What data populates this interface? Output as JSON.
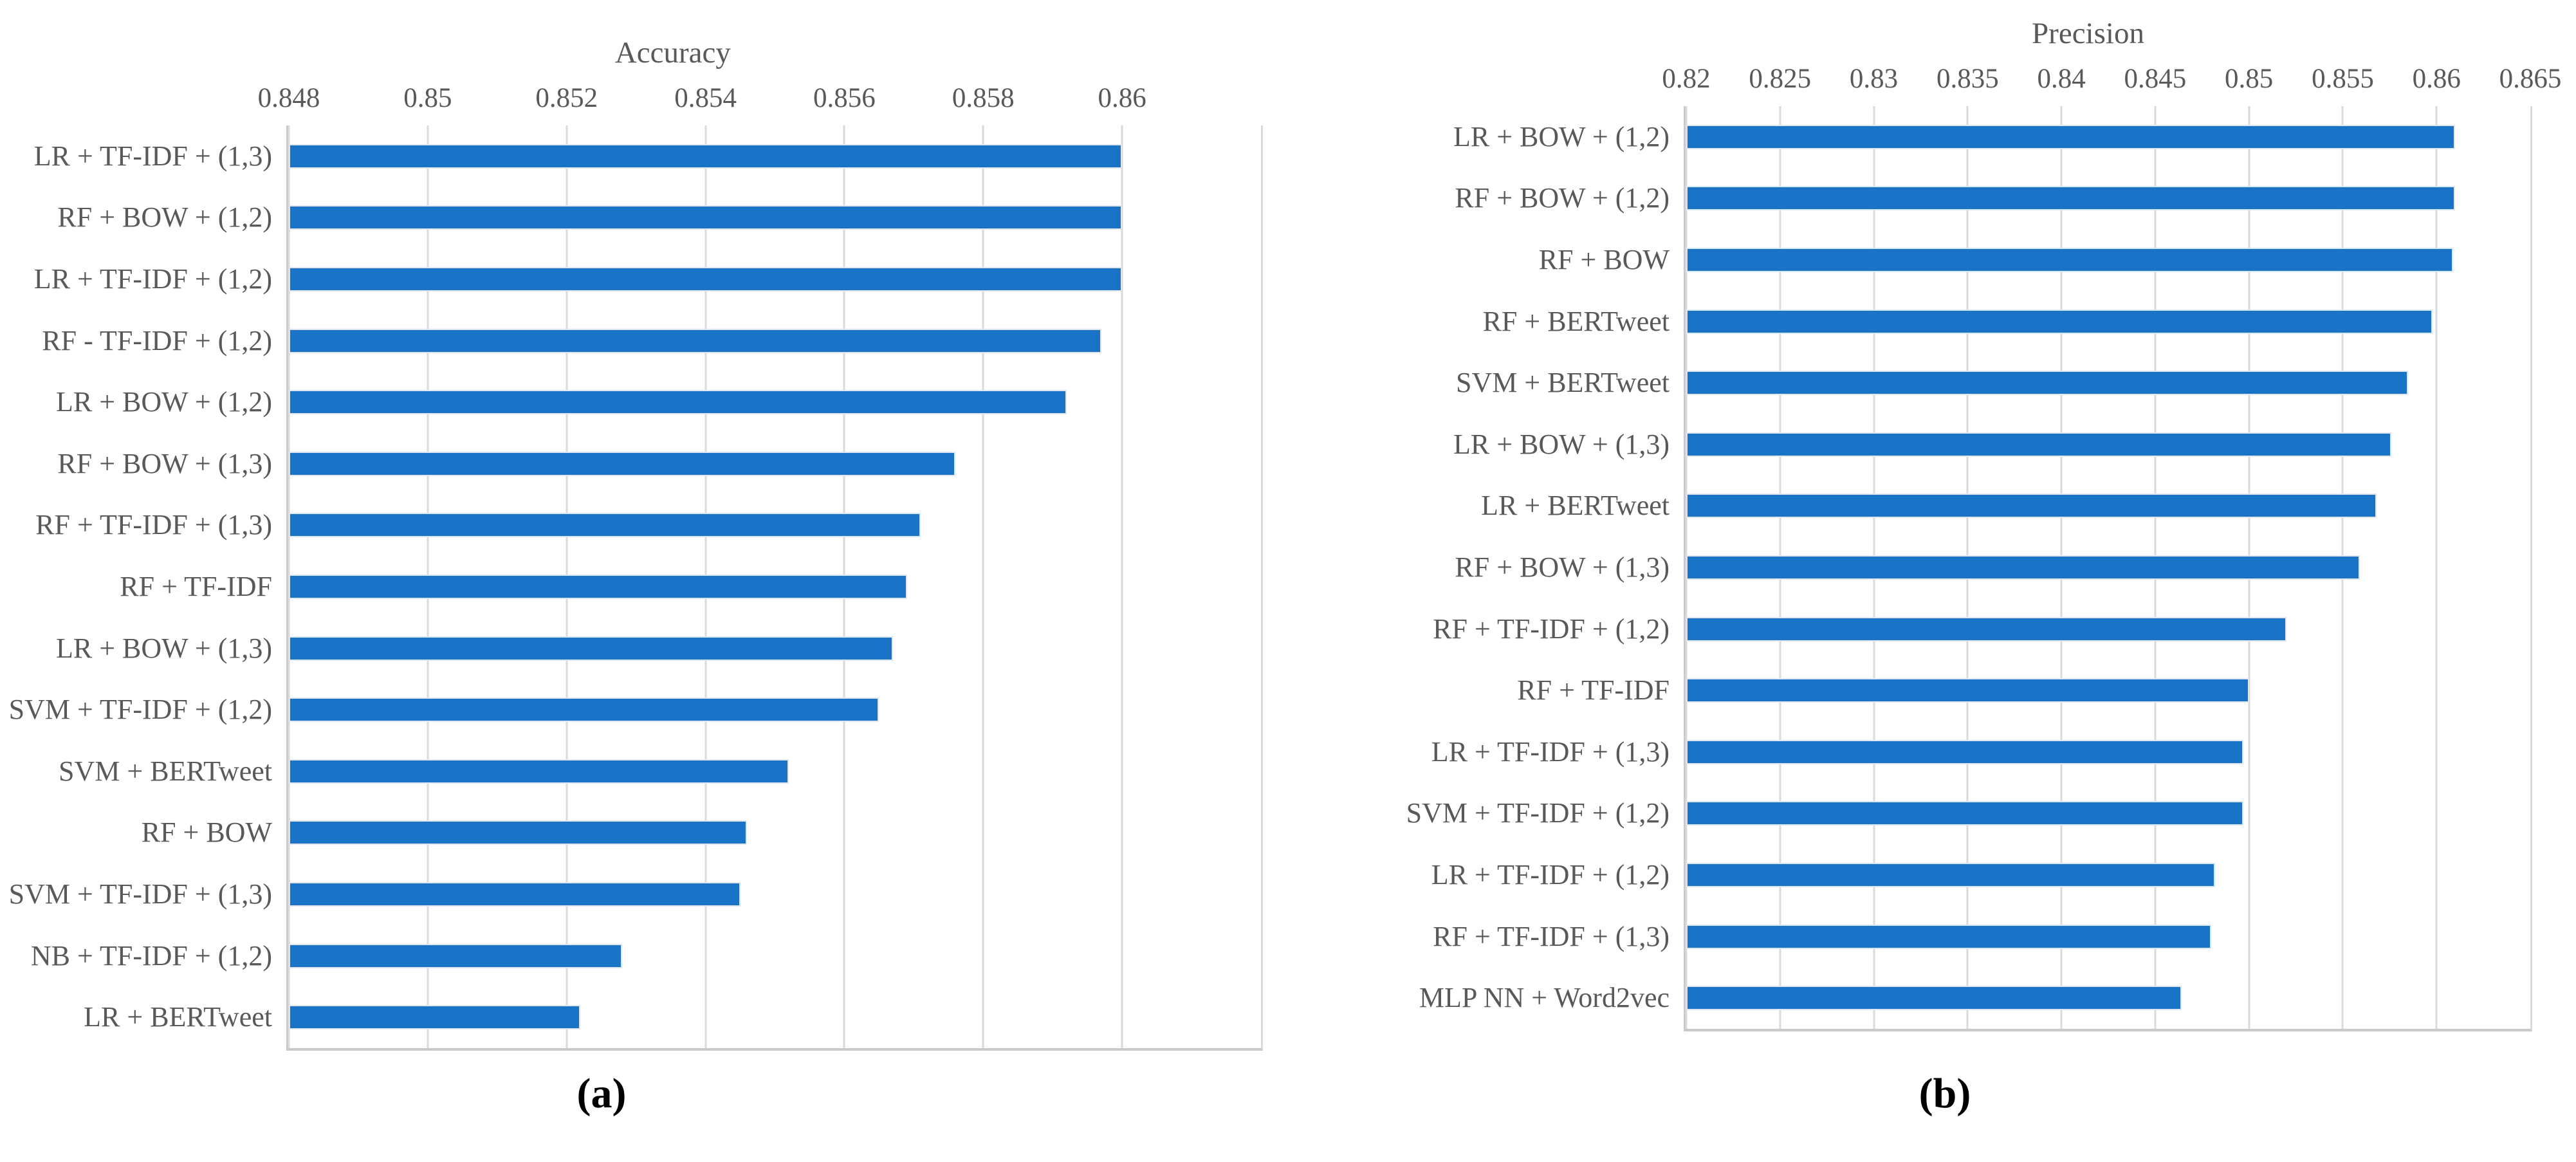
{
  "figure": {
    "background": "#ffffff",
    "bar_color": "#1b73c8",
    "bar_border_color": "#dde7f3",
    "grid_color": "#dadada",
    "axis_color": "#c9c9c9",
    "text_color": "#595959",
    "caption_color": "#000000"
  },
  "captions": {
    "a": "(a)",
    "b": "(b)"
  },
  "chart_data": [
    {
      "id": "accuracy",
      "type": "bar",
      "orientation": "horizontal",
      "title": "Accuracy",
      "xlabel": "",
      "ylabel": "",
      "xlim": [
        0.848,
        0.862
      ],
      "grid": true,
      "legend": "none",
      "ticks": [
        0.848,
        0.85,
        0.852,
        0.854,
        0.856,
        0.858,
        0.86
      ],
      "tick_labels": [
        "0.848",
        "0.85",
        "0.852",
        "0.854",
        "0.856",
        "0.858",
        "0.86"
      ],
      "categories": [
        "LR + TF-IDF + (1,3)",
        "RF + BOW + (1,2)",
        "LR + TF-IDF + (1,2)",
        "RF - TF-IDF + (1,2)",
        "LR + BOW + (1,2)",
        "RF + BOW + (1,3)",
        "RF + TF-IDF + (1,3)",
        "RF + TF-IDF",
        "LR + BOW + (1,3)",
        "SVM + TF-IDF + (1,2)",
        "SVM + BERTweet",
        "RF + BOW",
        "SVM + TF-IDF + (1,3)",
        "NB + TF-IDF + (1,2)",
        "LR + BERTweet"
      ],
      "values": [
        0.86,
        0.86,
        0.86,
        0.8597,
        0.8592,
        0.8576,
        0.8571,
        0.8569,
        0.8567,
        0.8565,
        0.8552,
        0.8546,
        0.8545,
        0.8528,
        0.8522
      ]
    },
    {
      "id": "precision",
      "type": "bar",
      "orientation": "horizontal",
      "title": "Precision",
      "xlabel": "",
      "ylabel": "",
      "xlim": [
        0.82,
        0.865
      ],
      "grid": true,
      "legend": "none",
      "ticks": [
        0.82,
        0.825,
        0.83,
        0.835,
        0.84,
        0.845,
        0.85,
        0.855,
        0.86,
        0.865
      ],
      "tick_labels": [
        "0.82",
        "0.825",
        "0.83",
        "0.835",
        "0.84",
        "0.845",
        "0.85",
        "0.855",
        "0.86",
        "0.865"
      ],
      "categories": [
        "LR + BOW + (1,2)",
        "RF + BOW + (1,2)",
        "RF + BOW",
        "RF + BERTweet",
        "SVM + BERTweet",
        "LR + BOW + (1,3)",
        "LR + BERTweet",
        "RF + BOW + (1,3)",
        "RF + TF-IDF + (1,2)",
        "RF + TF-IDF",
        "LR + TF-IDF + (1,3)",
        "SVM + TF-IDF + (1,2)",
        "LR + TF-IDF + (1,2)",
        "RF + TF-IDF + (1,3)",
        "MLP NN + Word2vec"
      ],
      "values": [
        0.861,
        0.861,
        0.8609,
        0.8598,
        0.8585,
        0.8576,
        0.8568,
        0.8559,
        0.852,
        0.85,
        0.8497,
        0.8497,
        0.8482,
        0.848,
        0.8464
      ]
    }
  ]
}
